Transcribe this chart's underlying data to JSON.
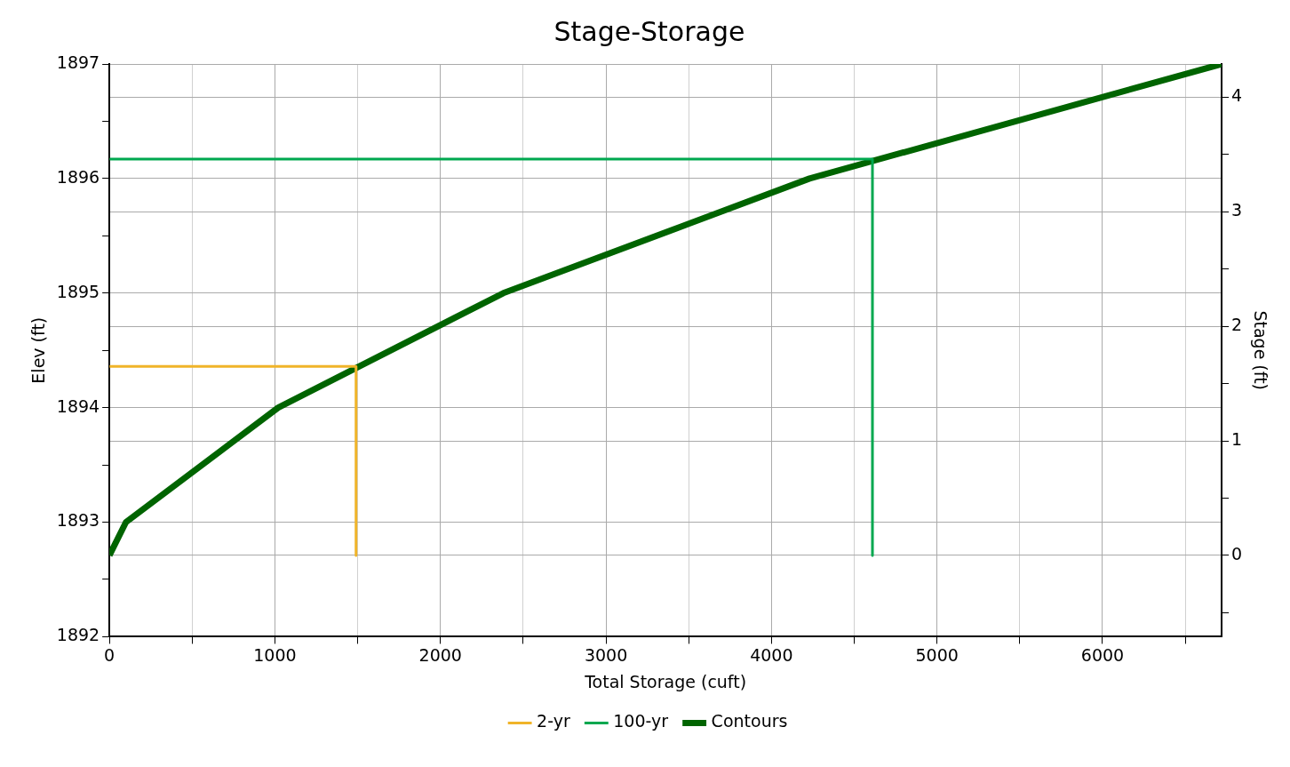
{
  "chart_data": {
    "type": "line",
    "title": "Stage-Storage",
    "xlabel": "Total Storage (cuft)",
    "ylabel": "Elev (ft)",
    "y2label": "Stage (ft)",
    "xlim": [
      0,
      6720
    ],
    "xticks": [
      0,
      {
        "value": 500,
        "label": null
      },
      1000,
      {
        "value": 1500,
        "label": null
      },
      2000,
      {
        "value": 2500,
        "label": null
      },
      3000,
      {
        "value": 3500,
        "label": null
      },
      4000,
      {
        "value": 4500,
        "label": null
      },
      5000,
      {
        "value": 5500,
        "label": null
      },
      6000,
      {
        "value": 6500,
        "label": null
      }
    ],
    "ylim": [
      1892,
      1897
    ],
    "yticks": [
      1892,
      {
        "value": 1892.5,
        "label": null
      },
      1893,
      {
        "value": 1893.5,
        "label": null
      },
      1894,
      {
        "value": 1894.5,
        "label": null
      },
      1895,
      {
        "value": 1895.5,
        "label": null
      },
      1896,
      {
        "value": 1896.5,
        "label": null
      },
      1897
    ],
    "y2lim": [
      -0.71,
      4.29
    ],
    "y2ticks": [
      {
        "value": -0.5,
        "label": null
      },
      0,
      {
        "value": 0.5,
        "label": null
      },
      1,
      {
        "value": 1.5,
        "label": null
      },
      2,
      {
        "value": 2.5,
        "label": null
      },
      3,
      {
        "value": 3.5,
        "label": null
      },
      4
    ],
    "grid": true,
    "legend": "bottom",
    "marker": "none",
    "line_style": "solid",
    "series": [
      {
        "name": "2-yr",
        "color": "#f0b429",
        "x": [
          0,
          1490,
          1490
        ],
        "values": [
          1894.36,
          1894.36,
          1892.71
        ]
      },
      {
        "name": "100-yr",
        "color": "#00a84f",
        "x": [
          0,
          4610,
          4610
        ],
        "values": [
          1896.17,
          1896.17,
          1892.71
        ]
      },
      {
        "name": "Contours",
        "color": "#006400",
        "x": [
          0,
          100,
          1020,
          2380,
          4230,
          6720
        ],
        "values": [
          1892.71,
          1893,
          1894,
          1895,
          1896,
          1897
        ]
      }
    ]
  }
}
